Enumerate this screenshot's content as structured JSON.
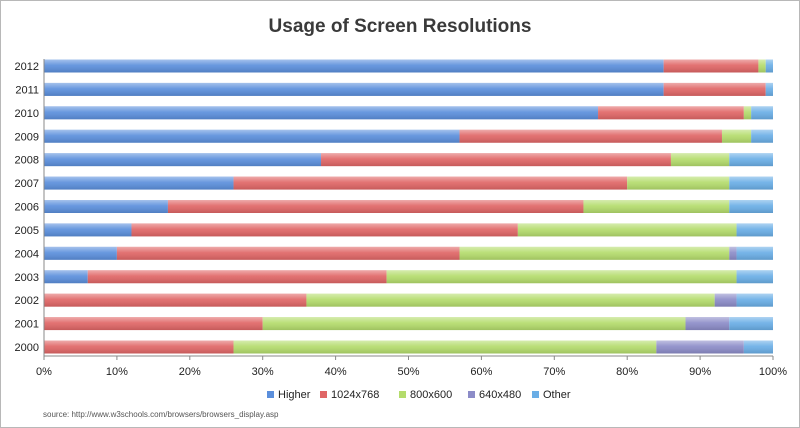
{
  "chart_data": {
    "type": "bar",
    "orientation": "horizontal",
    "stacked": true,
    "percent": true,
    "title": "Usage of Screen Resolutions",
    "source": "source: http://www.w3schools.com/browsers/browsers_display.asp",
    "categories": [
      "2000",
      "2001",
      "2002",
      "2003",
      "2004",
      "2005",
      "2006",
      "2007",
      "2008",
      "2009",
      "2010",
      "2011",
      "2012"
    ],
    "xlim": [
      0,
      100
    ],
    "xticks": [
      "0%",
      "10%",
      "20%",
      "30%",
      "40%",
      "50%",
      "60%",
      "70%",
      "80%",
      "90%",
      "100%"
    ],
    "grid": false,
    "legend_position": "bottom",
    "series": [
      {
        "name": "Higher",
        "color": "#5b8fdc",
        "values": [
          0,
          0,
          0,
          6,
          10,
          12,
          17,
          26,
          38,
          57,
          76,
          85,
          85
        ]
      },
      {
        "name": "1024x768",
        "color": "#e06666",
        "values": [
          26,
          30,
          36,
          41,
          47,
          53,
          57,
          54,
          48,
          36,
          20,
          14,
          13
        ]
      },
      {
        "name": "800x600",
        "color": "#b4dc6c",
        "values": [
          58,
          58,
          56,
          48,
          37,
          30,
          20,
          14,
          8,
          4,
          1,
          0,
          1
        ]
      },
      {
        "name": "640x480",
        "color": "#8c8cc8",
        "values": [
          12,
          6,
          3,
          0,
          1,
          0,
          0,
          0,
          0,
          0,
          0,
          0,
          0
        ]
      },
      {
        "name": "Other",
        "color": "#6aaee6",
        "values": [
          4,
          6,
          5,
          5,
          5,
          5,
          6,
          6,
          6,
          3,
          3,
          1,
          1
        ]
      }
    ]
  }
}
